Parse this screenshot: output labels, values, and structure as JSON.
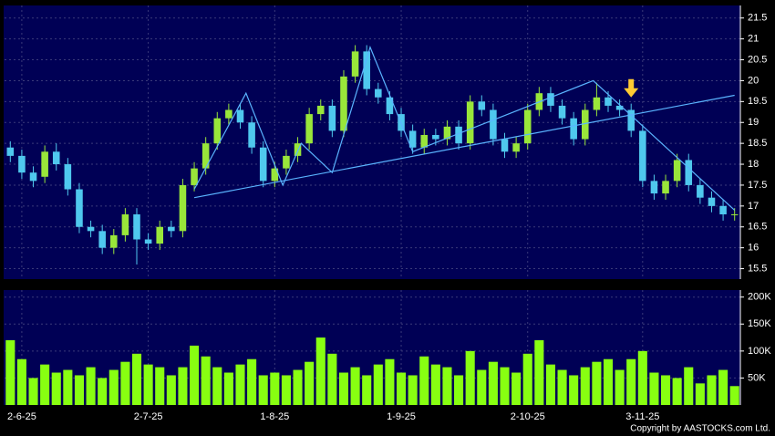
{
  "chart_data": {
    "type": "candlestick",
    "categories": [
      null,
      "2-6-25",
      null,
      null,
      null,
      null,
      null,
      null,
      null,
      null,
      null,
      null,
      "2-7-25",
      null,
      null,
      null,
      null,
      null,
      null,
      null,
      null,
      null,
      null,
      "1-8-25",
      null,
      null,
      null,
      null,
      null,
      null,
      null,
      null,
      null,
      null,
      "1-9-25",
      null,
      null,
      null,
      null,
      null,
      null,
      null,
      null,
      null,
      null,
      "2-10-25",
      null,
      null,
      null,
      null,
      null,
      null,
      null,
      null,
      null,
      "3-11-25",
      null,
      null,
      null,
      null,
      null,
      null,
      null,
      null
    ],
    "open": [
      18.4,
      18.2,
      17.8,
      17.7,
      18.3,
      18.0,
      17.4,
      16.5,
      16.4,
      16.0,
      16.3,
      16.8,
      16.2,
      16.1,
      16.5,
      16.4,
      17.5,
      17.9,
      18.5,
      19.1,
      19.3,
      19.0,
      18.4,
      17.6,
      17.9,
      18.2,
      18.5,
      19.2,
      19.4,
      18.8,
      20.1,
      20.7,
      19.8,
      19.6,
      19.2,
      18.8,
      18.4,
      18.7,
      18.6,
      18.9,
      18.5,
      19.5,
      19.3,
      18.6,
      18.3,
      18.5,
      19.3,
      19.7,
      19.4,
      19.1,
      18.6,
      19.3,
      19.6,
      19.4,
      19.3,
      18.8,
      17.6,
      17.3,
      17.6,
      18.1,
      17.5,
      17.2,
      17.0,
      16.8
    ],
    "high": [
      18.55,
      18.35,
      17.95,
      18.45,
      18.5,
      18.15,
      17.55,
      16.65,
      16.55,
      16.45,
      16.95,
      16.95,
      16.35,
      16.65,
      16.65,
      17.65,
      18.05,
      18.65,
      19.25,
      19.45,
      19.45,
      19.15,
      18.55,
      18.05,
      18.35,
      18.65,
      19.35,
      19.55,
      19.55,
      20.25,
      20.85,
      20.85,
      19.95,
      19.75,
      19.35,
      18.95,
      18.85,
      18.85,
      19.05,
      19.05,
      19.65,
      19.65,
      19.45,
      18.75,
      18.65,
      19.45,
      19.85,
      19.85,
      19.55,
      19.25,
      19.45,
      19.95,
      19.75,
      19.55,
      19.45,
      18.95,
      17.75,
      17.75,
      18.25,
      18.25,
      17.65,
      17.35,
      17.15,
      16.95
    ],
    "low": [
      18.05,
      17.65,
      17.45,
      17.55,
      17.85,
      17.25,
      16.35,
      16.25,
      15.85,
      15.85,
      16.15,
      15.6,
      15.95,
      15.95,
      16.25,
      16.25,
      17.35,
      17.75,
      18.35,
      18.95,
      18.85,
      18.25,
      17.45,
      17.45,
      17.75,
      18.05,
      18.35,
      19.05,
      18.65,
      18.65,
      19.95,
      19.65,
      19.45,
      19.05,
      18.65,
      18.25,
      18.25,
      18.45,
      18.45,
      18.35,
      18.35,
      19.15,
      18.45,
      18.15,
      18.15,
      18.35,
      19.15,
      19.25,
      18.95,
      18.45,
      18.45,
      19.15,
      19.25,
      19.15,
      18.65,
      17.45,
      17.15,
      17.15,
      17.45,
      17.35,
      17.05,
      16.85,
      16.65,
      16.65
    ],
    "close": [
      18.2,
      17.8,
      17.6,
      18.3,
      18.0,
      17.4,
      16.5,
      16.4,
      16.0,
      16.3,
      16.8,
      16.2,
      16.1,
      16.5,
      16.4,
      17.5,
      17.9,
      18.5,
      19.1,
      19.3,
      19.0,
      18.4,
      17.6,
      17.9,
      18.2,
      18.5,
      19.2,
      19.4,
      18.8,
      20.1,
      20.7,
      19.8,
      19.6,
      19.2,
      18.8,
      18.4,
      18.7,
      18.6,
      18.9,
      18.5,
      19.5,
      19.3,
      18.6,
      18.3,
      18.5,
      19.3,
      19.7,
      19.4,
      19.1,
      18.6,
      19.3,
      19.6,
      19.4,
      19.3,
      18.8,
      17.6,
      17.3,
      17.6,
      18.1,
      17.5,
      17.2,
      17.0,
      16.8,
      16.8
    ],
    "volume": [
      120000,
      85000,
      50000,
      75000,
      60000,
      65000,
      55000,
      70000,
      50000,
      65000,
      80000,
      95000,
      75000,
      70000,
      55000,
      70000,
      110000,
      90000,
      70000,
      60000,
      75000,
      85000,
      55000,
      60000,
      55000,
      65000,
      80000,
      125000,
      95000,
      60000,
      70000,
      55000,
      75000,
      85000,
      60000,
      55000,
      90000,
      75000,
      70000,
      55000,
      100000,
      65000,
      80000,
      70000,
      60000,
      95000,
      120000,
      75000,
      65000,
      55000,
      70000,
      80000,
      85000,
      65000,
      85000,
      100000,
      60000,
      55000,
      50000,
      70000,
      40000,
      55000,
      65000,
      35000
    ],
    "up_color": "#99e63a",
    "down_color": "#4fc8ee",
    "volume_color": "#88ff11",
    "line_color": "#5ab4ff",
    "arrow_color": "#ffcc33",
    "ylim": [
      15.25,
      21.8
    ],
    "yticks": [
      15.5,
      16,
      16.5,
      17,
      17.5,
      18,
      18.5,
      19,
      19.5,
      20,
      20.5,
      21,
      21.5
    ],
    "volume_ylim": [
      0,
      213000
    ],
    "volume_yticks": [
      {
        "value": 50000,
        "label": "50K"
      },
      {
        "value": 100000,
        "label": "100K"
      },
      {
        "value": 150000,
        "label": "150K"
      },
      {
        "value": 200000,
        "label": "200K"
      }
    ],
    "grid": true,
    "trendlines": [
      {
        "points": [
          [
            16,
            17.4
          ],
          [
            20.5,
            19.7
          ],
          [
            23.7,
            17.5
          ],
          [
            25.3,
            18.5
          ],
          [
            28,
            17.8
          ],
          [
            31.3,
            20.8
          ],
          [
            35,
            18.3
          ]
        ]
      },
      {
        "points": [
          [
            16,
            17.2
          ],
          [
            63,
            19.65
          ]
        ]
      },
      {
        "points": [
          [
            35,
            18.3
          ],
          [
            50.7,
            20.0
          ],
          [
            63,
            16.9
          ]
        ]
      }
    ],
    "arrow": {
      "index": 54,
      "value": 19.6
    },
    "copyright": "Copyright by AASTOCKS.com Ltd."
  }
}
